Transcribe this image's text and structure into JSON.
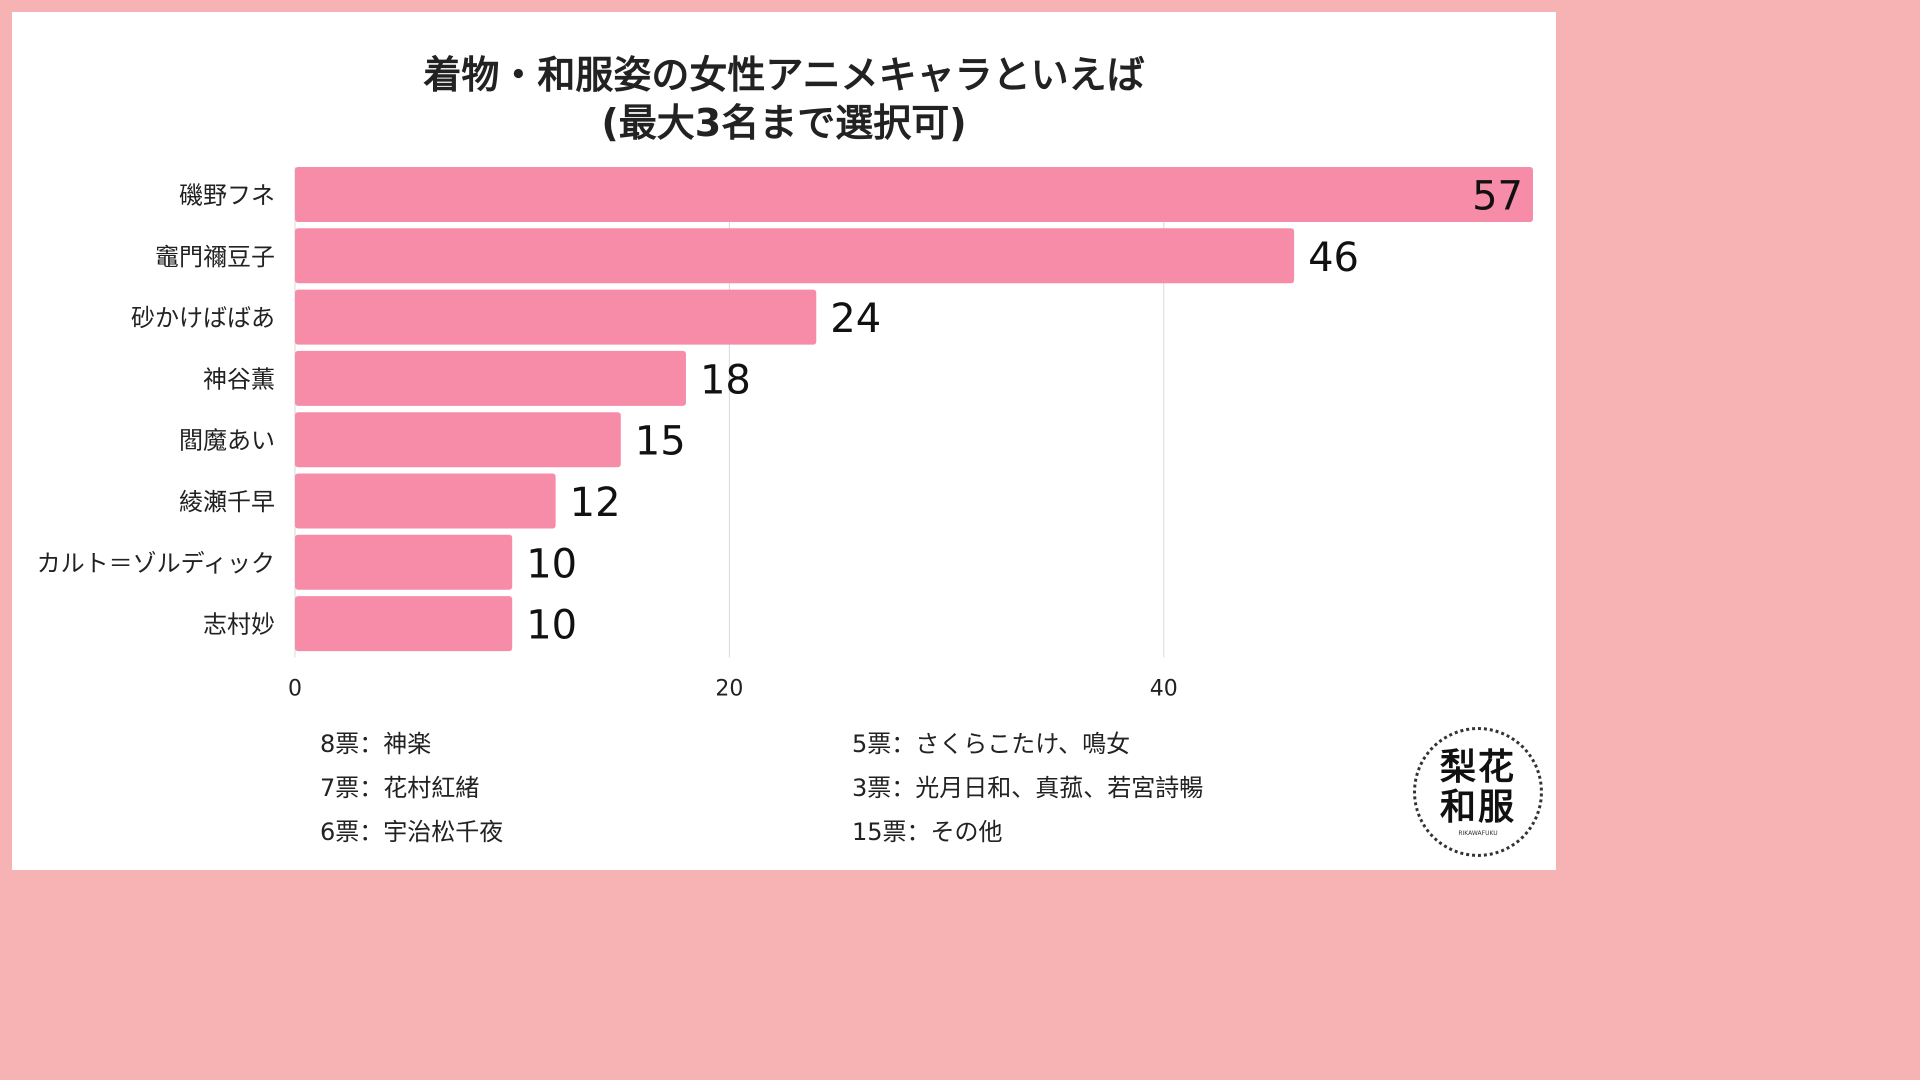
{
  "title_line1": "着物・和服姿の女性アニメキャラといえば",
  "title_line2": "(最大3名まで選択可)",
  "colors": {
    "bar": "#f78ca8",
    "frame": "#f7b2b4",
    "grid": "#d9d9d9"
  },
  "chart_data": {
    "type": "bar",
    "orientation": "horizontal",
    "categories": [
      "磯野フネ",
      "竈門禰豆子",
      "砂かけばばあ",
      "神谷薫",
      "閻魔あい",
      "綾瀬千早",
      "カルト＝ゾルディック",
      "志村妙"
    ],
    "values": [
      57,
      46,
      24,
      18,
      15,
      12,
      10,
      10
    ],
    "xlim": [
      0,
      57
    ],
    "xticks": [
      0,
      20,
      40
    ],
    "grid": true,
    "data_labels": true
  },
  "notes": {
    "left": [
      "8票：神楽",
      "7票：花村紅緒",
      "6票：宇治松千夜"
    ],
    "right": [
      "5票：さくらこたけ、鳴女",
      "3票：光月日和、真菰、若宮詩暢",
      "15票：その他"
    ]
  },
  "logo": {
    "line1": "梨花",
    "line2": "和服",
    "sub": "RIKAWAFUKU"
  }
}
